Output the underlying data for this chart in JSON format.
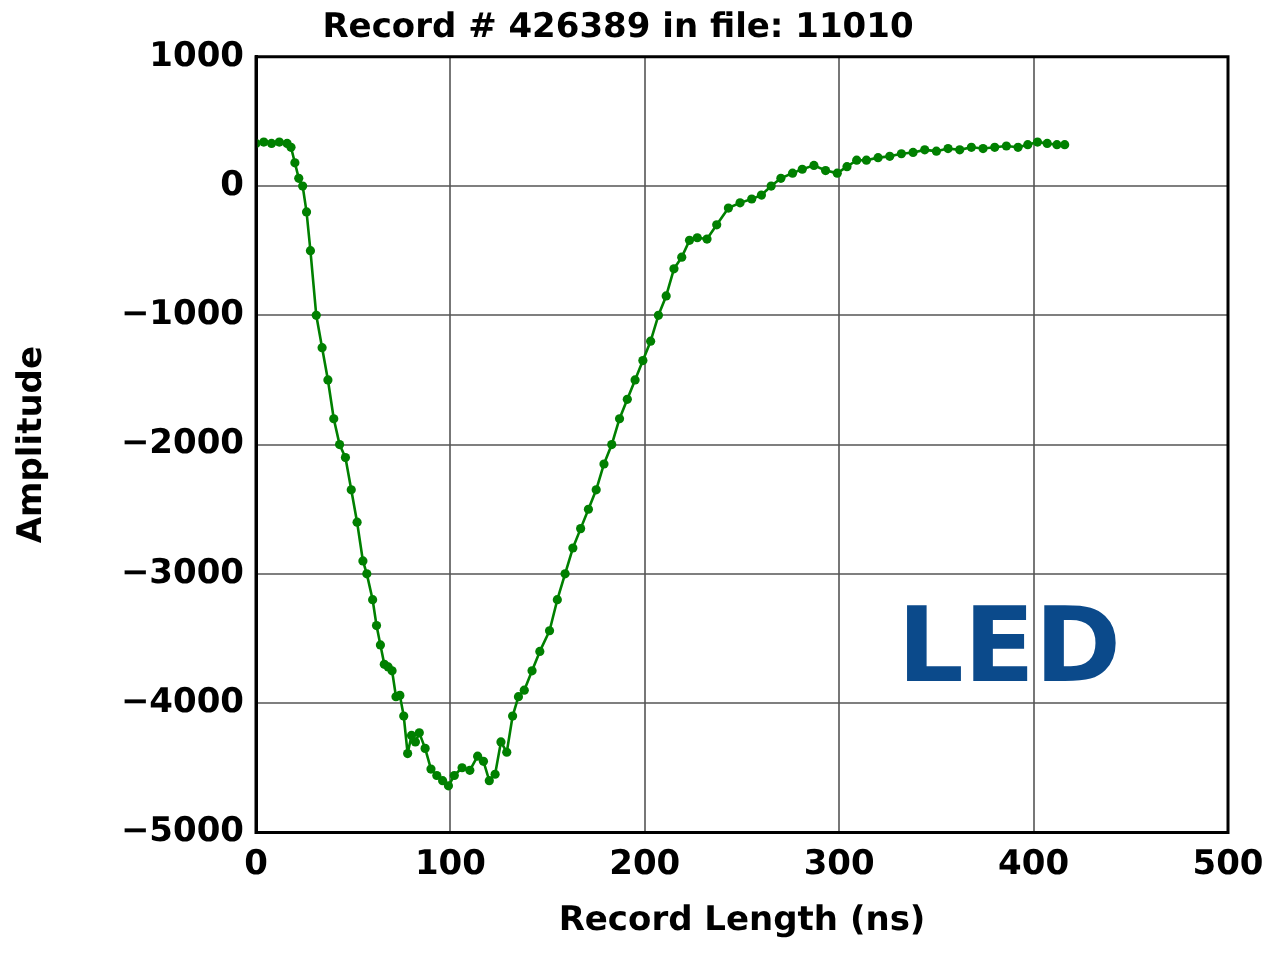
{
  "chart_data": {
    "type": "line",
    "title": "Record # 426389 in file: 11010",
    "xlabel": "Record Length (ns)",
    "ylabel": "Amplitude",
    "annotations": [
      "LED"
    ],
    "x": [
      0,
      4,
      8,
      12,
      16,
      18,
      20,
      22,
      24,
      26,
      28,
      31,
      34,
      37,
      40,
      43,
      46,
      49,
      52,
      55,
      57,
      60,
      62,
      64,
      66,
      68,
      70,
      72,
      74,
      76,
      78,
      80,
      82,
      84,
      87,
      90,
      93,
      96,
      99,
      102,
      106,
      110,
      114,
      117,
      120,
      123,
      126,
      129,
      132,
      135,
      138,
      142,
      146,
      151,
      155,
      159,
      163,
      167,
      171,
      175,
      179,
      183,
      187,
      191,
      195,
      199,
      203,
      207,
      211,
      215,
      219,
      223,
      227,
      232,
      237,
      243,
      249,
      255,
      260,
      265,
      270,
      276,
      281,
      287,
      293,
      299,
      304,
      309,
      314,
      320,
      326,
      332,
      338,
      344,
      350,
      356,
      362,
      368,
      374,
      380,
      386,
      392,
      397,
      402,
      407,
      412,
      416
    ],
    "series": [
      {
        "color": "#008000",
        "values": [
          330,
          340,
          330,
          340,
          330,
          300,
          180,
          60,
          0,
          -200,
          -500,
          -1000,
          -1250,
          -1500,
          -1800,
          -2000,
          -2100,
          -2350,
          -2600,
          -2900,
          -3000,
          -3200,
          -3400,
          -3550,
          -3700,
          -3720,
          -3750,
          -3950,
          -3940,
          -4100,
          -4390,
          -4250,
          -4300,
          -4230,
          -4350,
          -4510,
          -4560,
          -4600,
          -4640,
          -4560,
          -4500,
          -4520,
          -4410,
          -4450,
          -4600,
          -4550,
          -4300,
          -4380,
          -4100,
          -3950,
          -3900,
          -3750,
          -3600,
          -3440,
          -3200,
          -3000,
          -2800,
          -2650,
          -2500,
          -2350,
          -2150,
          -2000,
          -1800,
          -1650,
          -1500,
          -1350,
          -1200,
          -1000,
          -850,
          -640,
          -550,
          -420,
          -400,
          -410,
          -300,
          -170,
          -130,
          -100,
          -70,
          0,
          60,
          100,
          130,
          160,
          120,
          100,
          150,
          200,
          200,
          220,
          230,
          250,
          260,
          280,
          270,
          290,
          280,
          300,
          290,
          300,
          310,
          300,
          320,
          340,
          330,
          320,
          320
        ]
      }
    ],
    "xlim": [
      0,
      500
    ],
    "xticks": [
      0,
      100,
      200,
      300,
      400,
      500
    ],
    "ylim": [
      -5000,
      1000
    ],
    "yticks": [
      -5000,
      -4000,
      -3000,
      -2000,
      -1000,
      0,
      1000
    ],
    "grid": true,
    "legend": false,
    "marker": "circle",
    "line_style": "solid"
  }
}
